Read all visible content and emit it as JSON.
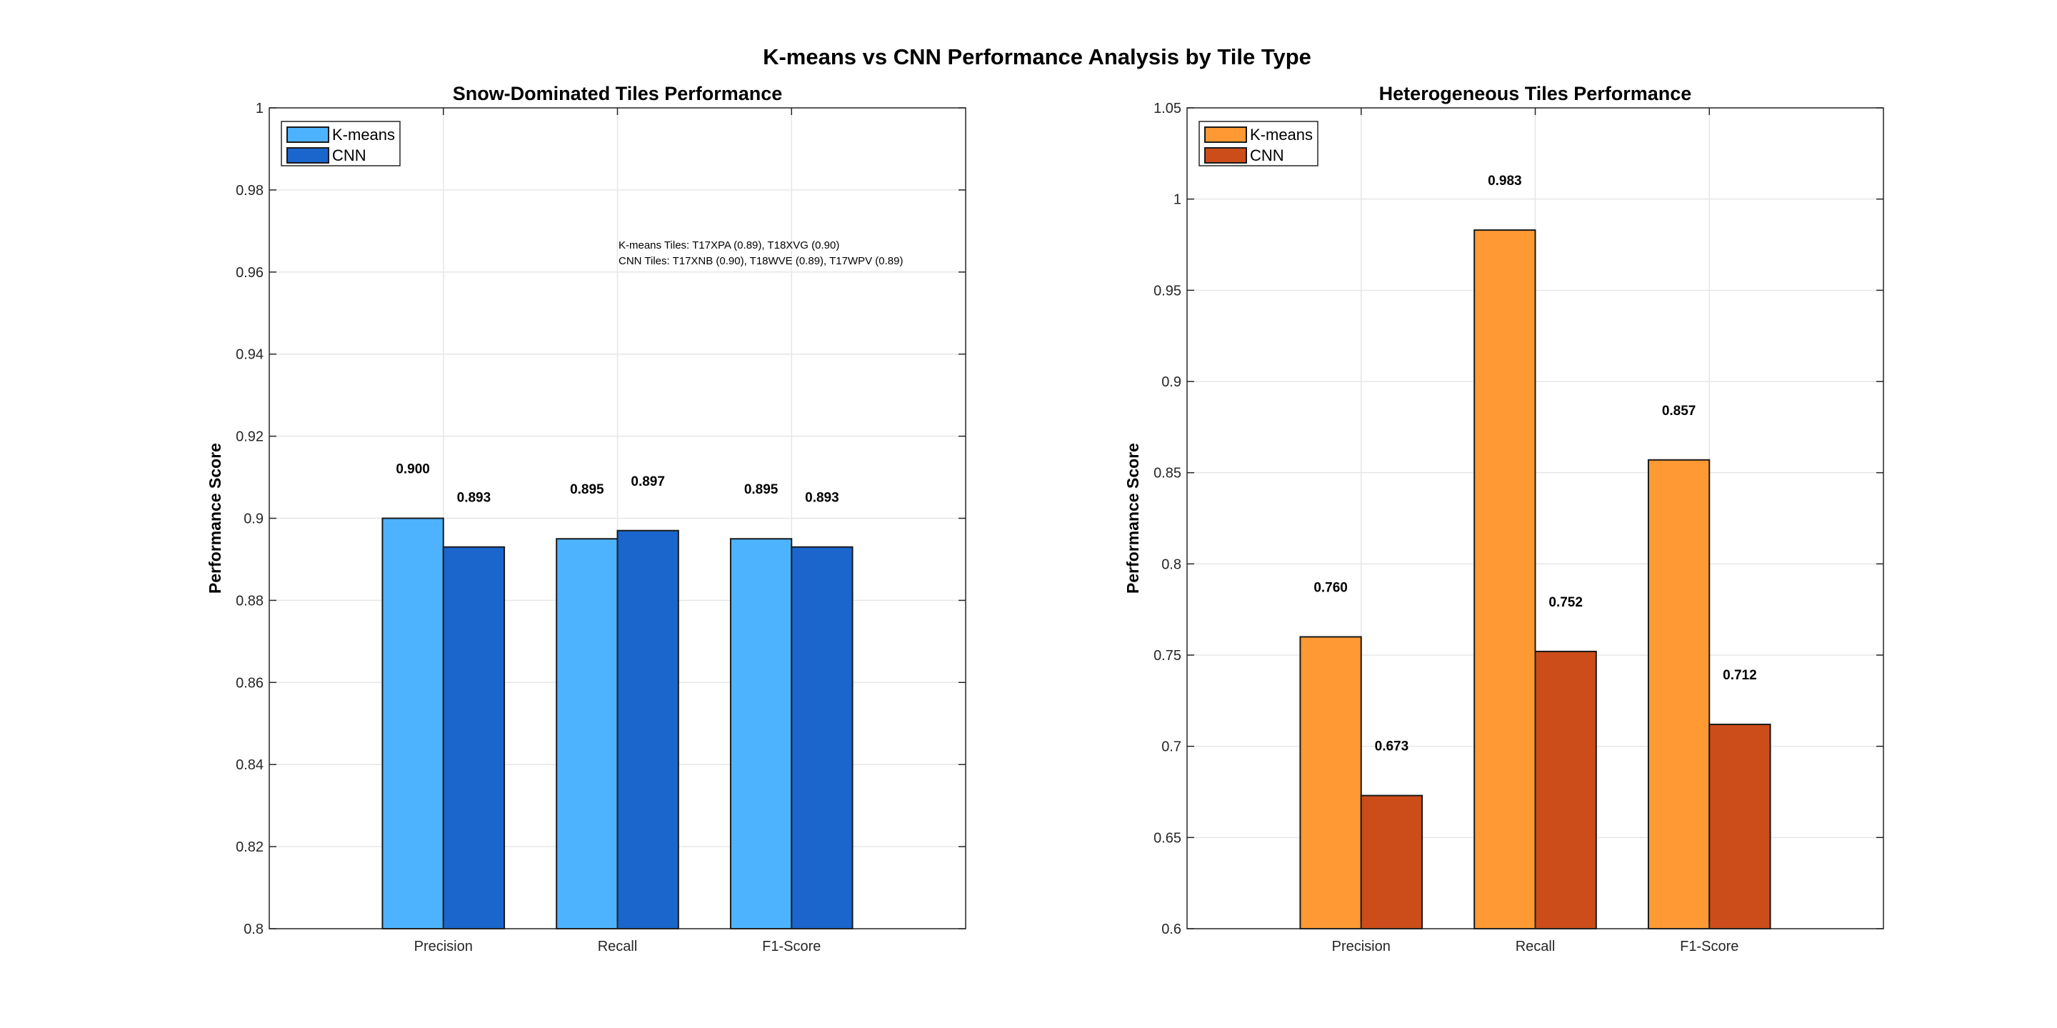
{
  "figure_title": "K-means vs CNN Performance Analysis by Tile Type",
  "chart_data": [
    {
      "type": "bar",
      "title": "Snow-Dominated Tiles Performance",
      "xlabel": "",
      "ylabel": "Performance Score",
      "categories": [
        "Precision",
        "Recall",
        "F1-Score"
      ],
      "ylim": [
        0.8,
        1.0
      ],
      "yticks": [
        0.8,
        0.82,
        0.84,
        0.86,
        0.88,
        0.9,
        0.92,
        0.94,
        0.96,
        0.98,
        1
      ],
      "ytick_labels": [
        "0.8",
        "0.82",
        "0.84",
        "0.86",
        "0.88",
        "0.9",
        "0.92",
        "0.94",
        "0.96",
        "0.98",
        "1"
      ],
      "grid": true,
      "legend": "top-left",
      "series": [
        {
          "name": "K-means",
          "values": [
            0.9,
            0.895,
            0.895
          ],
          "labels": [
            "0.900",
            "0.895",
            "0.895"
          ],
          "color": "#4DB3FF"
        },
        {
          "name": "CNN",
          "values": [
            0.893,
            0.897,
            0.893
          ],
          "labels": [
            "0.893",
            "0.897",
            "0.893"
          ],
          "color": "#1A66CC"
        }
      ],
      "annotations": [
        "K-means Tiles: T17XPA (0.89), T18XVG (0.90)",
        "CNN Tiles: T17XNB (0.90), T18WVE (0.89), T17WPV (0.89)"
      ]
    },
    {
      "type": "bar",
      "title": "Heterogeneous Tiles Performance",
      "xlabel": "",
      "ylabel": "Performance Score",
      "categories": [
        "Precision",
        "Recall",
        "F1-Score"
      ],
      "ylim": [
        0.6,
        1.05
      ],
      "yticks": [
        0.6,
        0.65,
        0.7,
        0.75,
        0.8,
        0.85,
        0.9,
        0.95,
        1,
        1.05
      ],
      "ytick_labels": [
        "0.6",
        "0.65",
        "0.7",
        "0.75",
        "0.8",
        "0.85",
        "0.9",
        "0.95",
        "1",
        "1.05"
      ],
      "grid": true,
      "legend": "top-left",
      "series": [
        {
          "name": "K-means",
          "values": [
            0.76,
            0.983,
            0.857
          ],
          "labels": [
            "0.760",
            "0.983",
            "0.857"
          ],
          "color": "#FF9933"
        },
        {
          "name": "CNN",
          "values": [
            0.673,
            0.752,
            0.712
          ],
          "labels": [
            "0.673",
            "0.752",
            "0.712"
          ],
          "color": "#CC4D1A"
        }
      ],
      "annotations": []
    }
  ]
}
